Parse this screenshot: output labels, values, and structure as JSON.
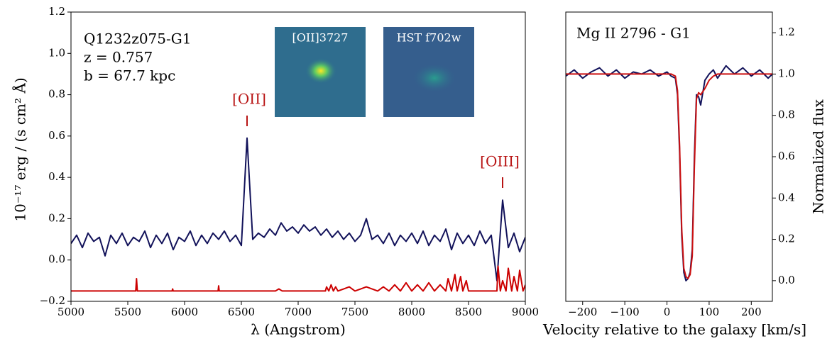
{
  "chart_data": [
    {
      "type": "line",
      "ylabel": "10⁻¹⁷ erg / (s cm² Å)",
      "xlabel": "λ (Angstrom)",
      "text_lines": [
        "Q1232z075-G1",
        "z = 0.757",
        "b = 67.7 kpc"
      ],
      "annotations": [
        "[OII]",
        "[OIII]"
      ],
      "insets": [
        {
          "label": "[OII]3727"
        },
        {
          "label": "HST f702w"
        }
      ],
      "xlim": [
        5000,
        9000
      ],
      "xticks": [
        5000,
        5500,
        6000,
        6500,
        7000,
        7500,
        8000,
        8500,
        9000
      ],
      "ylim": [
        -0.2,
        1.2
      ],
      "yticks": [
        {
          "value": -0.2,
          "label": "−0.2"
        },
        {
          "value": 0,
          "label": "0.0"
        },
        {
          "value": 0.2,
          "label": "0.2"
        },
        {
          "value": 0.4,
          "label": "0.4"
        },
        {
          "value": 0.6,
          "label": "0.6"
        },
        {
          "value": 0.8,
          "label": "0.8"
        },
        {
          "value": 1.0,
          "label": "1.0"
        },
        {
          "value": 1.2,
          "label": "1.2"
        }
      ],
      "yaxis_side": "left",
      "series": [
        {
          "color": "#12125a",
          "x": [
            5000,
            5050,
            5100,
            5150,
            5200,
            5250,
            5300,
            5350,
            5400,
            5450,
            5500,
            5550,
            5600,
            5650,
            5700,
            5750,
            5800,
            5850,
            5900,
            5950,
            6000,
            6050,
            6100,
            6150,
            6200,
            6250,
            6300,
            6350,
            6400,
            6450,
            6500,
            6550,
            6600,
            6650,
            6700,
            6750,
            6800,
            6850,
            6900,
            6950,
            7000,
            7050,
            7100,
            7150,
            7200,
            7250,
            7300,
            7350,
            7400,
            7450,
            7500,
            7550,
            7600,
            7650,
            7700,
            7750,
            7800,
            7850,
            7900,
            7950,
            8000,
            8050,
            8100,
            8150,
            8200,
            8250,
            8300,
            8350,
            8400,
            8450,
            8500,
            8550,
            8600,
            8650,
            8700,
            8750,
            8800,
            8850,
            8900,
            8950,
            9000
          ],
          "values": [
            0.08,
            0.12,
            0.06,
            0.13,
            0.09,
            0.11,
            0.02,
            0.12,
            0.08,
            0.13,
            0.07,
            0.11,
            0.09,
            0.14,
            0.06,
            0.12,
            0.08,
            0.13,
            0.05,
            0.11,
            0.09,
            0.14,
            0.07,
            0.12,
            0.08,
            0.13,
            0.1,
            0.14,
            0.09,
            0.12,
            0.07,
            0.59,
            0.1,
            0.13,
            0.11,
            0.15,
            0.12,
            0.18,
            0.14,
            0.16,
            0.13,
            0.17,
            0.14,
            0.16,
            0.12,
            0.15,
            0.11,
            0.14,
            0.1,
            0.13,
            0.09,
            0.12,
            0.2,
            0.1,
            0.12,
            0.08,
            0.13,
            0.07,
            0.12,
            0.09,
            0.13,
            0.08,
            0.14,
            0.07,
            0.12,
            0.09,
            0.15,
            0.05,
            0.13,
            0.08,
            0.12,
            0.07,
            0.14,
            0.08,
            0.12,
            -0.1,
            0.29,
            0.06,
            0.13,
            0.04,
            0.11
          ]
        },
        {
          "color": "#cc0000",
          "x": [
            5000,
            5570,
            5577,
            5584,
            5890,
            5895,
            5900,
            6295,
            6300,
            6305,
            6800,
            6830,
            6860,
            7240,
            7250,
            7270,
            7290,
            7310,
            7330,
            7350,
            7400,
            7450,
            7500,
            7550,
            7600,
            7700,
            7750,
            7800,
            7850,
            7900,
            7950,
            8000,
            8050,
            8100,
            8150,
            8200,
            8250,
            8300,
            8320,
            8350,
            8380,
            8400,
            8430,
            8450,
            8480,
            8500,
            8600,
            8700,
            8750,
            8760,
            8780,
            8800,
            8830,
            8850,
            8880,
            8900,
            8930,
            8950,
            8980,
            9000
          ],
          "values": [
            -0.15,
            -0.15,
            -0.09,
            -0.15,
            -0.15,
            -0.14,
            -0.15,
            -0.15,
            -0.125,
            -0.15,
            -0.15,
            -0.14,
            -0.15,
            -0.15,
            -0.13,
            -0.15,
            -0.12,
            -0.15,
            -0.13,
            -0.15,
            -0.14,
            -0.13,
            -0.15,
            -0.14,
            -0.13,
            -0.15,
            -0.13,
            -0.15,
            -0.12,
            -0.15,
            -0.11,
            -0.15,
            -0.12,
            -0.15,
            -0.11,
            -0.15,
            -0.12,
            -0.15,
            -0.09,
            -0.15,
            -0.07,
            -0.15,
            -0.08,
            -0.15,
            -0.1,
            -0.15,
            -0.15,
            -0.15,
            -0.15,
            -0.03,
            -0.15,
            -0.1,
            -0.15,
            -0.04,
            -0.15,
            -0.08,
            -0.15,
            -0.05,
            -0.15,
            -0.12
          ]
        }
      ]
    },
    {
      "type": "line",
      "title": "Mg II 2796 - G1",
      "ylabel": "Normalized flux",
      "xlabel": "Velocity relative to the galaxy [km/s]",
      "xlim": [
        -240,
        250
      ],
      "xticks": [
        {
          "value": -200,
          "label": "−200"
        },
        {
          "value": -100,
          "label": "−100"
        },
        0,
        100,
        200
      ],
      "ylim": [
        -0.1,
        1.3
      ],
      "yticks": [
        {
          "value": 0,
          "label": "0.0"
        },
        {
          "value": 0.2,
          "label": "0.2"
        },
        {
          "value": 0.4,
          "label": "0.4"
        },
        {
          "value": 0.6,
          "label": "0.6"
        },
        {
          "value": 0.8,
          "label": "0.8"
        },
        {
          "value": 1.0,
          "label": "1.0"
        },
        {
          "value": 1.2,
          "label": "1.2"
        }
      ],
      "yaxis_side": "right",
      "series": [
        {
          "color": "#12125a",
          "x": [
            -240,
            -220,
            -200,
            -180,
            -160,
            -140,
            -120,
            -100,
            -80,
            -60,
            -40,
            -20,
            0,
            10,
            20,
            25,
            30,
            35,
            40,
            45,
            50,
            55,
            60,
            65,
            70,
            75,
            80,
            90,
            100,
            110,
            120,
            140,
            160,
            180,
            200,
            220,
            240,
            250
          ],
          "values": [
            0.99,
            1.02,
            0.98,
            1.01,
            1.03,
            0.99,
            1.02,
            0.98,
            1.01,
            1.0,
            1.02,
            0.99,
            1.01,
            0.99,
            0.98,
            0.9,
            0.62,
            0.22,
            0.04,
            0.0,
            0.01,
            0.04,
            0.15,
            0.6,
            0.9,
            0.89,
            0.85,
            0.97,
            1.0,
            1.02,
            0.98,
            1.04,
            1.0,
            1.03,
            0.99,
            1.02,
            0.98,
            1.0
          ]
        },
        {
          "color": "#cc1111",
          "x": [
            -240,
            -220,
            -200,
            -180,
            -160,
            -140,
            -120,
            -100,
            -80,
            -60,
            -40,
            -20,
            0,
            10,
            20,
            25,
            30,
            35,
            40,
            45,
            50,
            55,
            60,
            65,
            70,
            75,
            80,
            90,
            100,
            110,
            120,
            140,
            160,
            180,
            200,
            220,
            240,
            250
          ],
          "values": [
            1,
            1,
            1,
            1,
            1,
            1,
            1,
            1,
            1,
            1,
            1,
            1,
            1,
            1,
            0.99,
            0.92,
            0.65,
            0.25,
            0.06,
            0.02,
            0.01,
            0.03,
            0.12,
            0.55,
            0.88,
            0.91,
            0.9,
            0.93,
            0.97,
            0.99,
            1,
            1,
            1,
            1,
            1,
            1,
            1,
            1
          ]
        }
      ]
    }
  ]
}
